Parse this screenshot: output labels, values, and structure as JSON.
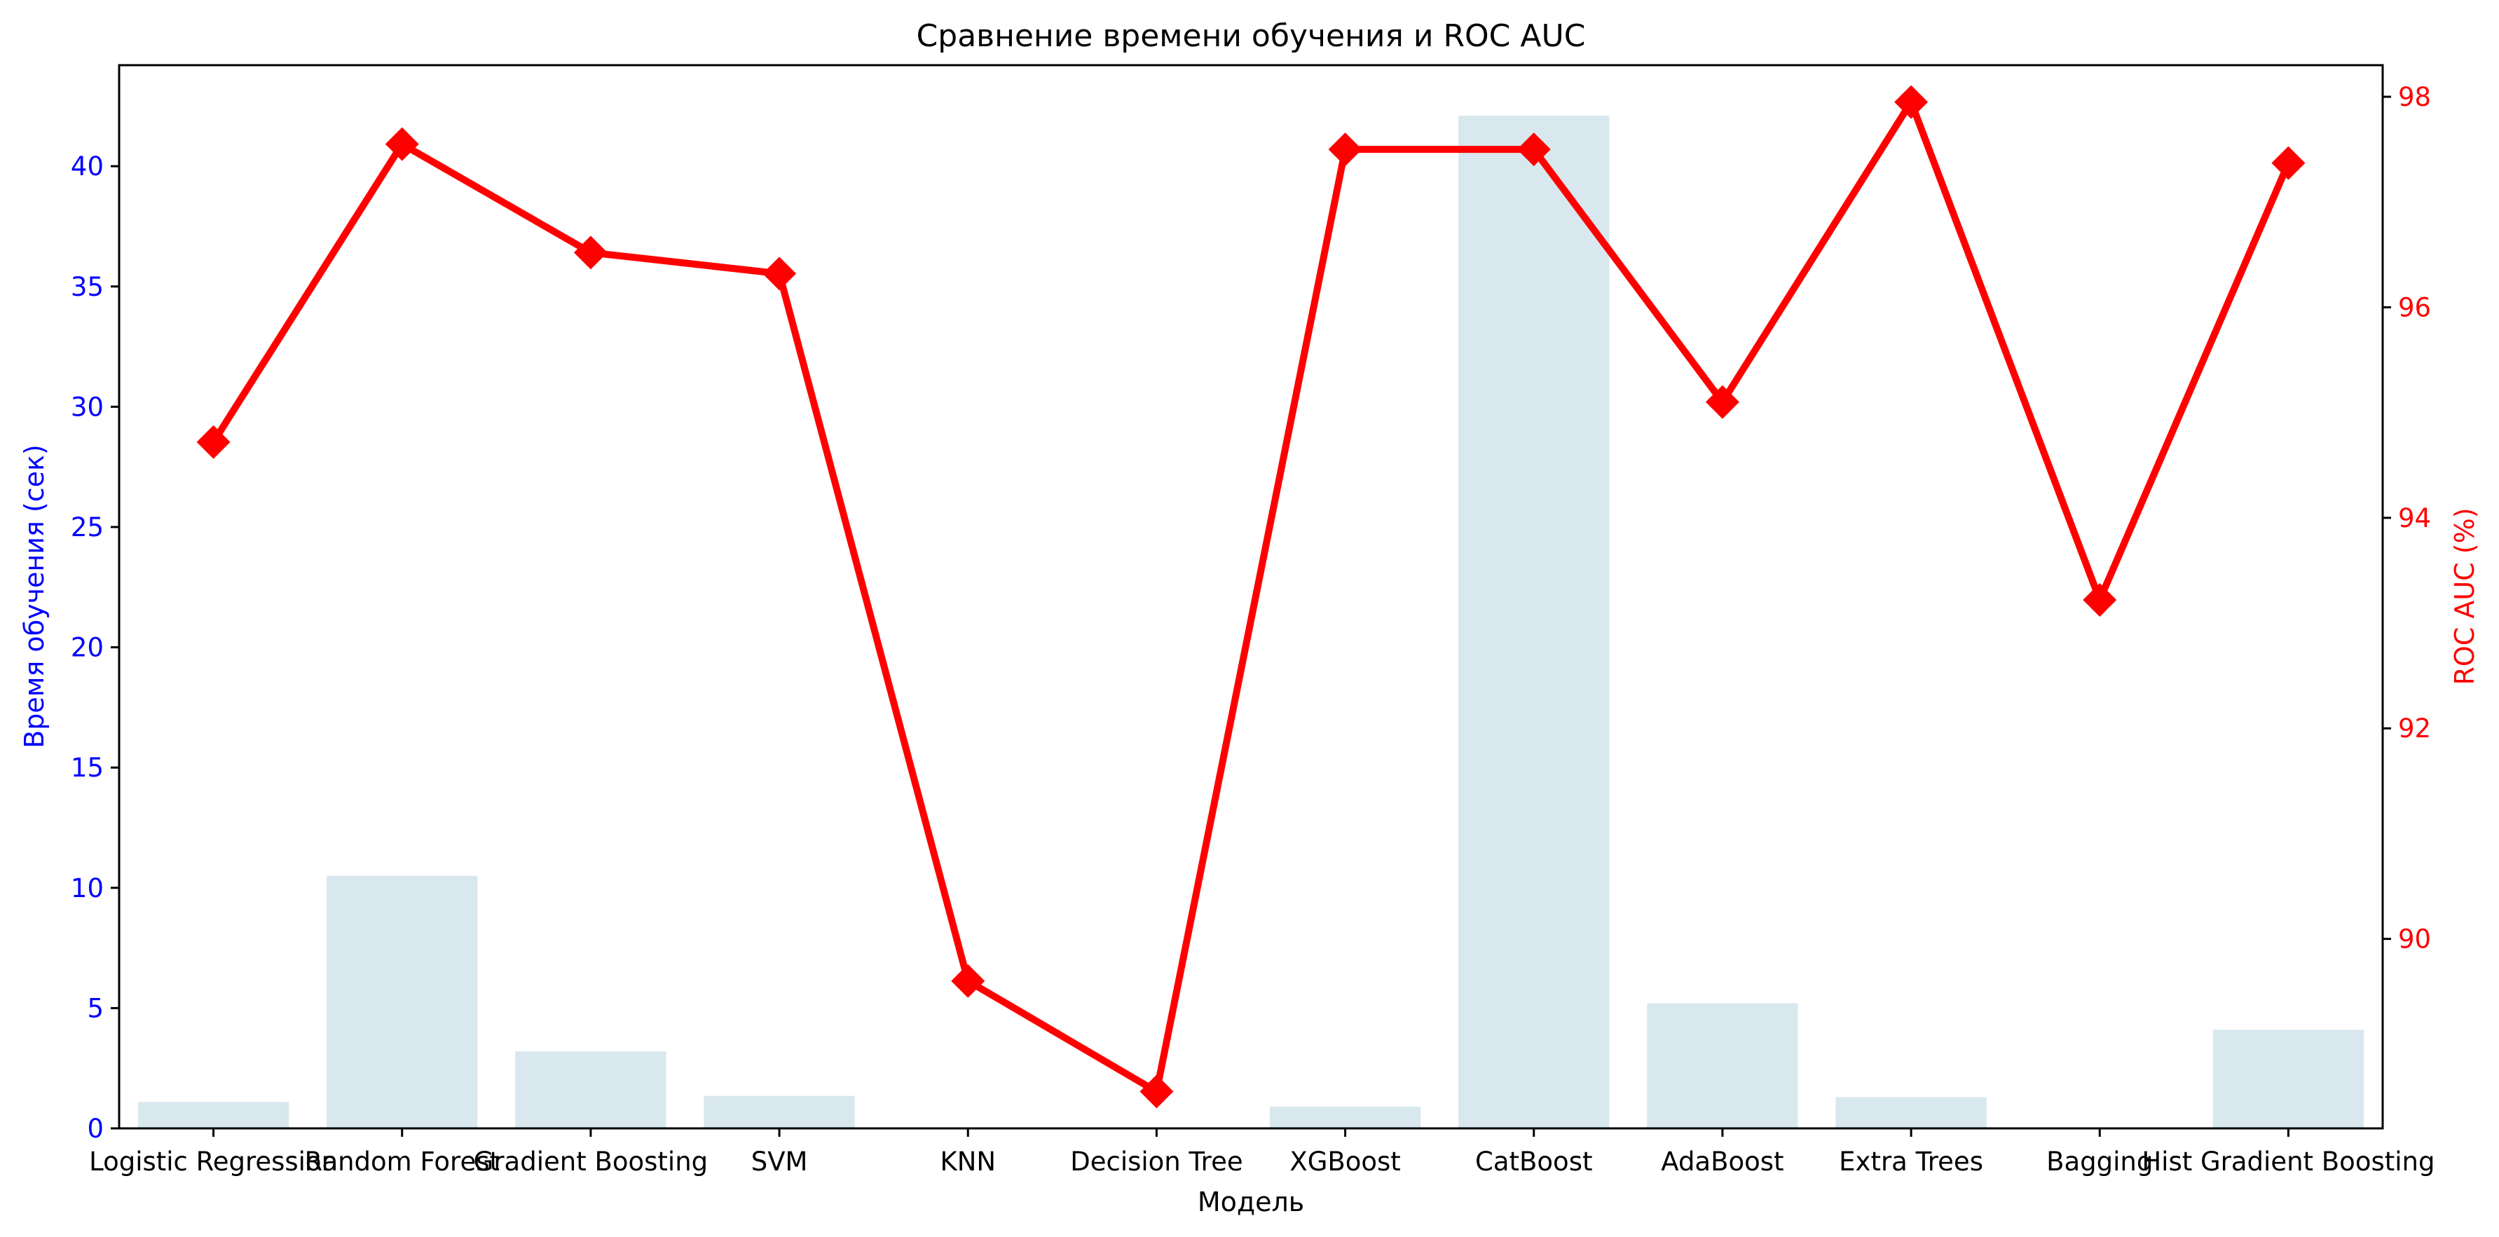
{
  "chart_data": {
    "type": "bar",
    "title": "Сравнение времени обучения и ROC AUC",
    "xlabel": "Модель",
    "categories": [
      "Logistic Regression",
      "Random Forest",
      "Gradient Boosting",
      "SVM",
      "KNN",
      "Decision Tree",
      "XGBoost",
      "CatBoost",
      "AdaBoost",
      "Extra Trees",
      "Bagging",
      "Hist Gradient Boosting"
    ],
    "series": [
      {
        "type": "bar",
        "axis": "left",
        "color": "#d9e8ee",
        "values": [
          1.1,
          10.5,
          3.2,
          1.35,
          0.0,
          0.0,
          0.9,
          42.1,
          5.2,
          1.3,
          0.0,
          4.1
        ]
      },
      {
        "type": "line",
        "axis": "right",
        "color": "#ff0000",
        "marker": "diamond",
        "values": [
          94.72,
          97.55,
          96.52,
          96.32,
          89.6,
          88.55,
          97.5,
          97.5,
          95.1,
          97.95,
          93.22,
          97.37
        ]
      }
    ],
    "y_left": {
      "label": "Время обучения (сек)",
      "ylim": [
        0,
        44.2
      ],
      "ticks": [
        0,
        5,
        10,
        15,
        20,
        25,
        30,
        35,
        40
      ],
      "color": "#0000ff"
    },
    "y_right": {
      "label": "ROC AUC (%)",
      "ylim": [
        88.2,
        98.3
      ],
      "ticks": [
        90,
        92,
        94,
        96,
        98
      ],
      "color": "#ff0000"
    },
    "grid": false,
    "legend": "none"
  }
}
